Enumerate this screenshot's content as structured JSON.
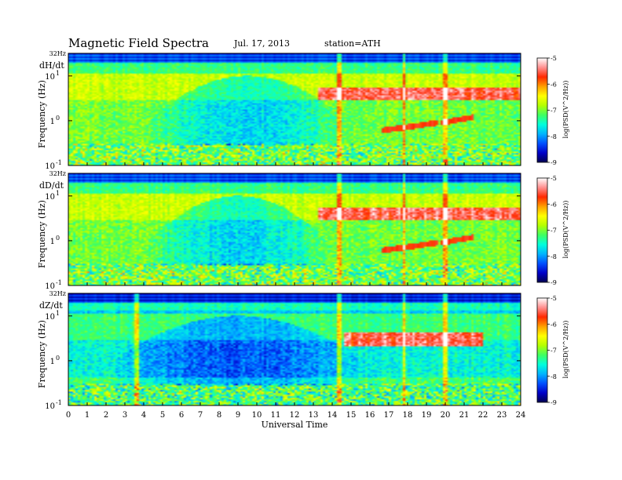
{
  "header": {
    "title": "Magnetic  Field  Spectra",
    "date": "Jul.  17, 2013",
    "station": "station=ATH"
  },
  "colors": {
    "scale": [
      "#000050",
      "#0000c8",
      "#0050ff",
      "#00b4ff",
      "#00ffdc",
      "#40ff60",
      "#b4ff00",
      "#ffff00",
      "#ffa000",
      "#ff2800",
      "#ff9090",
      "#ffffff"
    ]
  },
  "chart_data": [
    {
      "type": "heatmap",
      "component": "dH/dt",
      "ylabel": "Frequency  (Hz)",
      "ytick_labels": [
        "32Hz",
        "10",
        "1",
        "0",
        "-1"
      ],
      "xlabel": "",
      "xlim": [
        0,
        24
      ],
      "colorbar": {
        "label": "log(PSD(V^2/Hz))",
        "ticks": [
          -5,
          -6,
          -7,
          -8,
          -9
        ],
        "range": [
          -9,
          -5
        ]
      },
      "features": {
        "quiet_bowl": {
          "t_start": 4,
          "t_end": 15
        },
        "pc1_bands": [
          {
            "t_start": 13.3,
            "t_end": 24,
            "freq_hz": 4
          }
        ],
        "rising_tones": [
          {
            "t_start": 16.6,
            "t_end": 19.6,
            "f_start_hz": 0.6,
            "f_end_hz": 0.9
          },
          {
            "t_start": 19.8,
            "t_end": 21.5,
            "f_start_hz": 0.9,
            "f_end_hz": 1.2
          }
        ],
        "broadband_lines": [
          14.4,
          17.8,
          20.0
        ]
      }
    },
    {
      "type": "heatmap",
      "component": "dD/dt",
      "ylabel": "Frequency  (Hz)",
      "ytick_labels": [
        "32Hz",
        "10",
        "1",
        "0",
        "-1"
      ],
      "xlabel": "",
      "xlim": [
        0,
        24
      ],
      "colorbar": {
        "label": "log(PSD(V^2/Hz))",
        "ticks": [
          -5,
          -6,
          -7,
          -8,
          -9
        ],
        "range": [
          -9,
          -5
        ]
      },
      "features": {
        "quiet_bowl": {
          "t_start": 4,
          "t_end": 14
        },
        "pc1_bands": [
          {
            "t_start": 13.3,
            "t_end": 24,
            "freq_hz": 4
          }
        ],
        "rising_tones": [
          {
            "t_start": 16.6,
            "t_end": 19.6,
            "f_start_hz": 0.6,
            "f_end_hz": 0.9
          },
          {
            "t_start": 19.8,
            "t_end": 21.5,
            "f_start_hz": 0.9,
            "f_end_hz": 1.2
          }
        ],
        "broadband_lines": [
          14.4,
          17.8,
          20.0
        ]
      }
    },
    {
      "type": "heatmap",
      "component": "dZ/dt",
      "ylabel": "Frequency  (Hz)",
      "ytick_labels": [
        "32Hz",
        "10",
        "1",
        "0",
        "-1"
      ],
      "xlabel": "Universal  Time",
      "xticks": [
        0,
        1,
        2,
        3,
        4,
        5,
        6,
        7,
        8,
        9,
        10,
        11,
        12,
        13,
        14,
        15,
        16,
        17,
        18,
        19,
        20,
        21,
        22,
        23,
        24
      ],
      "xlim": [
        0,
        24
      ],
      "colorbar": {
        "label": "log(PSD(V^2/Hz))",
        "ticks": [
          -5,
          -6,
          -7,
          -8,
          -9
        ],
        "range": [
          -9,
          -5
        ]
      },
      "features": {
        "quiet_bowl": {
          "t_start": 2,
          "t_end": 16
        },
        "pc1_bands": [
          {
            "t_start": 14.6,
            "t_end": 22,
            "freq_hz": 3
          }
        ],
        "rising_tones": [],
        "broadband_lines": [
          3.6,
          14.4,
          17.8,
          20.0
        ]
      }
    }
  ]
}
